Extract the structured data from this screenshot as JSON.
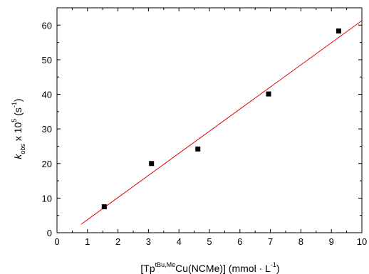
{
  "chart_data": {
    "type": "scatter",
    "xlabel": {
      "prefix": "[Tp",
      "superscript": "tBu,Me",
      "middle": "Cu(NCMe)] (mmol · L",
      "exponent": "-1",
      "suffix": ")"
    },
    "ylabel": {
      "symbol": "k",
      "subscript": "obs",
      "middle": " x 10",
      "exponent": "5",
      "unit_open": " (s",
      "unit_exponent": "-1",
      "unit_close": ")"
    },
    "xlim": [
      0,
      10
    ],
    "ylim": [
      0,
      65
    ],
    "xticks": [
      0,
      1,
      2,
      3,
      4,
      5,
      6,
      7,
      8,
      9,
      10
    ],
    "yticks": [
      0,
      10,
      20,
      30,
      40,
      50,
      60
    ],
    "points": [
      {
        "x": 1.55,
        "y": 7.5
      },
      {
        "x": 3.1,
        "y": 20.0
      },
      {
        "x": 4.62,
        "y": 24.2
      },
      {
        "x": 6.94,
        "y": 40.1
      },
      {
        "x": 9.24,
        "y": 58.3
      }
    ],
    "fit_line": {
      "x": [
        0.8,
        10.0
      ],
      "y": [
        2.5,
        61.3
      ]
    },
    "colors": {
      "points": "#000000",
      "fit_line": "#dd0000",
      "axes": "#000000"
    },
    "grid": false,
    "legend": "none"
  }
}
